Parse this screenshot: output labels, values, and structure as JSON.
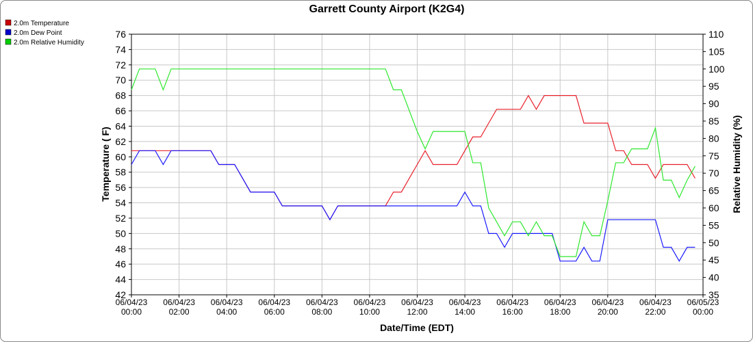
{
  "chart_data": {
    "type": "line",
    "title": "Garrett County Airport (K2G4)",
    "x_label": "Date/Time (EDT)",
    "y_label": "Temperature ( F)",
    "y2_label": "Relative Humidity (%)",
    "x": [
      "06/04/23 00:00",
      "06/04/23 00:20",
      "06/04/23 00:40",
      "06/04/23 01:00",
      "06/04/23 01:20",
      "06/04/23 01:40",
      "06/04/23 02:00",
      "06/04/23 02:20",
      "06/04/23 02:40",
      "06/04/23 03:00",
      "06/04/23 03:20",
      "06/04/23 03:40",
      "06/04/23 04:00",
      "06/04/23 04:20",
      "06/04/23 04:40",
      "06/04/23 05:00",
      "06/04/23 05:20",
      "06/04/23 05:40",
      "06/04/23 06:00",
      "06/04/23 06:20",
      "06/04/23 06:40",
      "06/04/23 07:00",
      "06/04/23 07:20",
      "06/04/23 07:40",
      "06/04/23 08:00",
      "06/04/23 08:20",
      "06/04/23 08:40",
      "06/04/23 09:00",
      "06/04/23 09:20",
      "06/04/23 09:40",
      "06/04/23 10:00",
      "06/04/23 10:20",
      "06/04/23 10:40",
      "06/04/23 11:00",
      "06/04/23 11:20",
      "06/04/23 11:40",
      "06/04/23 12:00",
      "06/04/23 12:20",
      "06/04/23 12:40",
      "06/04/23 13:00",
      "06/04/23 13:20",
      "06/04/23 13:40",
      "06/04/23 14:00",
      "06/04/23 14:20",
      "06/04/23 14:40",
      "06/04/23 15:00",
      "06/04/23 15:20",
      "06/04/23 15:40",
      "06/04/23 16:00",
      "06/04/23 16:20",
      "06/04/23 16:40",
      "06/04/23 17:00",
      "06/04/23 17:20",
      "06/04/23 17:40",
      "06/04/23 18:00",
      "06/04/23 18:20",
      "06/04/23 18:40",
      "06/04/23 19:00",
      "06/04/23 19:20",
      "06/04/23 19:40",
      "06/04/23 20:00",
      "06/04/23 20:20",
      "06/04/23 20:40",
      "06/04/23 21:00",
      "06/04/23 21:20",
      "06/04/23 21:40",
      "06/04/23 22:00",
      "06/04/23 22:20",
      "06/04/23 22:40",
      "06/04/23 23:00",
      "06/04/23 23:20",
      "06/04/23 23:40"
    ],
    "series": [
      {
        "name": "2.0m Temperature",
        "color": "#e8202a",
        "legend_color": "#cc0000",
        "values": [
          60.8,
          60.8,
          60.8,
          60.8,
          60.8,
          60.8,
          60.8,
          60.8,
          60.8,
          60.8,
          60.8,
          59,
          59,
          59,
          57.2,
          55.4,
          55.4,
          55.4,
          55.4,
          53.6,
          53.6,
          53.6,
          53.6,
          53.6,
          53.6,
          51.8,
          53.6,
          53.6,
          53.6,
          53.6,
          53.6,
          53.6,
          53.6,
          55.4,
          55.4,
          57.2,
          59,
          60.8,
          59,
          59,
          59,
          59,
          60.8,
          62.6,
          62.6,
          64.4,
          66.2,
          66.2,
          66.2,
          66.2,
          68,
          66.2,
          68,
          68,
          68,
          68,
          68,
          64.4,
          64.4,
          64.4,
          64.4,
          60.8,
          60.8,
          59,
          59,
          59,
          57.2,
          59,
          59,
          59,
          59,
          57.2
        ]
      },
      {
        "name": "2.0m Dew Point",
        "color": "#1a1aff",
        "legend_color": "#0000cc",
        "values": [
          59,
          60.8,
          60.8,
          60.8,
          59,
          60.8,
          60.8,
          60.8,
          60.8,
          60.8,
          60.8,
          59,
          59,
          59,
          57.2,
          55.4,
          55.4,
          55.4,
          55.4,
          53.6,
          53.6,
          53.6,
          53.6,
          53.6,
          53.6,
          51.8,
          53.6,
          53.6,
          53.6,
          53.6,
          53.6,
          53.6,
          53.6,
          53.6,
          53.6,
          53.6,
          53.6,
          53.6,
          53.6,
          53.6,
          53.6,
          53.6,
          55.4,
          53.6,
          53.6,
          50,
          50,
          48.2,
          50,
          50,
          50,
          50,
          50,
          50,
          46.4,
          46.4,
          46.4,
          48.2,
          46.4,
          46.4,
          51.8,
          51.8,
          51.8,
          51.8,
          51.8,
          51.8,
          51.8,
          48.2,
          48.2,
          46.4,
          48.2,
          48.2
        ]
      },
      {
        "name": "2.0m Relative Humidity",
        "color": "#2ee82e",
        "legend_color": "#00cc00",
        "axis": "y2",
        "values": [
          94,
          100,
          100,
          100,
          94,
          100,
          100,
          100,
          100,
          100,
          100,
          100,
          100,
          100,
          100,
          100,
          100,
          100,
          100,
          100,
          100,
          100,
          100,
          100,
          100,
          100,
          100,
          100,
          100,
          100,
          100,
          100,
          100,
          94,
          94,
          88,
          82,
          77,
          82,
          82,
          82,
          82,
          82,
          73,
          73,
          60,
          56,
          52,
          56,
          56,
          52,
          56,
          52,
          52,
          46,
          46,
          46,
          56,
          52,
          52,
          62,
          73,
          73,
          77,
          77,
          77,
          83,
          68,
          68,
          63,
          68,
          72
        ]
      }
    ],
    "xlim": [
      "06/04/23 00:00",
      "06/05/23 00:00"
    ],
    "xticks": [
      {
        "value": "06/04/23 00:00",
        "label": [
          "06/04/23",
          "00:00"
        ]
      },
      {
        "value": "06/04/23 02:00",
        "label": [
          "06/04/23",
          "02:00"
        ]
      },
      {
        "value": "06/04/23 04:00",
        "label": [
          "06/04/23",
          "04:00"
        ]
      },
      {
        "value": "06/04/23 06:00",
        "label": [
          "06/04/23",
          "06:00"
        ]
      },
      {
        "value": "06/04/23 08:00",
        "label": [
          "06/04/23",
          "08:00"
        ]
      },
      {
        "value": "06/04/23 10:00",
        "label": [
          "06/04/23",
          "10:00"
        ]
      },
      {
        "value": "06/04/23 12:00",
        "label": [
          "06/04/23",
          "12:00"
        ]
      },
      {
        "value": "06/04/23 14:00",
        "label": [
          "06/04/23",
          "14:00"
        ]
      },
      {
        "value": "06/04/23 16:00",
        "label": [
          "06/04/23",
          "16:00"
        ]
      },
      {
        "value": "06/04/23 18:00",
        "label": [
          "06/04/23",
          "18:00"
        ]
      },
      {
        "value": "06/04/23 20:00",
        "label": [
          "06/04/23",
          "20:00"
        ]
      },
      {
        "value": "06/04/23 22:00",
        "label": [
          "06/04/23",
          "22:00"
        ]
      },
      {
        "value": "06/05/23 00:00",
        "label": [
          "06/05/23",
          "00:00"
        ]
      }
    ],
    "ylim": [
      42,
      76
    ],
    "yticks": [
      42,
      44,
      46,
      48,
      50,
      52,
      54,
      56,
      58,
      60,
      62,
      64,
      66,
      68,
      70,
      72,
      74,
      76
    ],
    "y2lim": [
      35,
      110
    ],
    "y2ticks": [
      35,
      40,
      45,
      50,
      55,
      60,
      65,
      70,
      75,
      80,
      85,
      90,
      95,
      100,
      105,
      110
    ],
    "grid": true,
    "legend": "top-left"
  }
}
